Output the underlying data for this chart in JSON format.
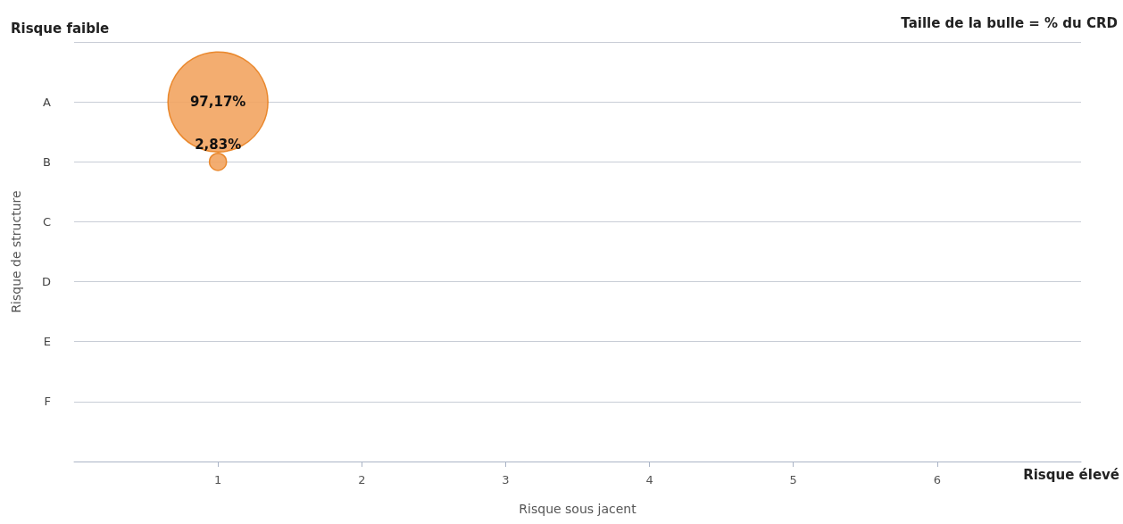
{
  "chart_data": {
    "type": "bubble",
    "orientation": "horizontal",
    "xlabel": "Risque sous jacent",
    "ylabel": "Risque de structure",
    "annotations": [
      "Risque faible",
      "Taille de la bulle = % du CRD",
      "Risque élevé",
      {
        "text": "97,17%",
        "x": 1,
        "y": "A"
      },
      {
        "text": "2,83%",
        "x": 1,
        "y": "B"
      }
    ],
    "categories": [
      null,
      "A",
      "B",
      "C",
      "D",
      "E",
      "F",
      null
    ],
    "values": [
      null,
      1,
      1,
      null,
      null,
      null,
      null,
      null
    ],
    "sizes": [
      null,
      1,
      0.0291,
      null,
      null,
      null,
      null,
      null
    ],
    "color": "#f2a461",
    "xlim": [
      0,
      7
    ],
    "xticks": [
      1,
      2,
      3,
      4,
      5,
      6
    ],
    "grid": "y"
  }
}
